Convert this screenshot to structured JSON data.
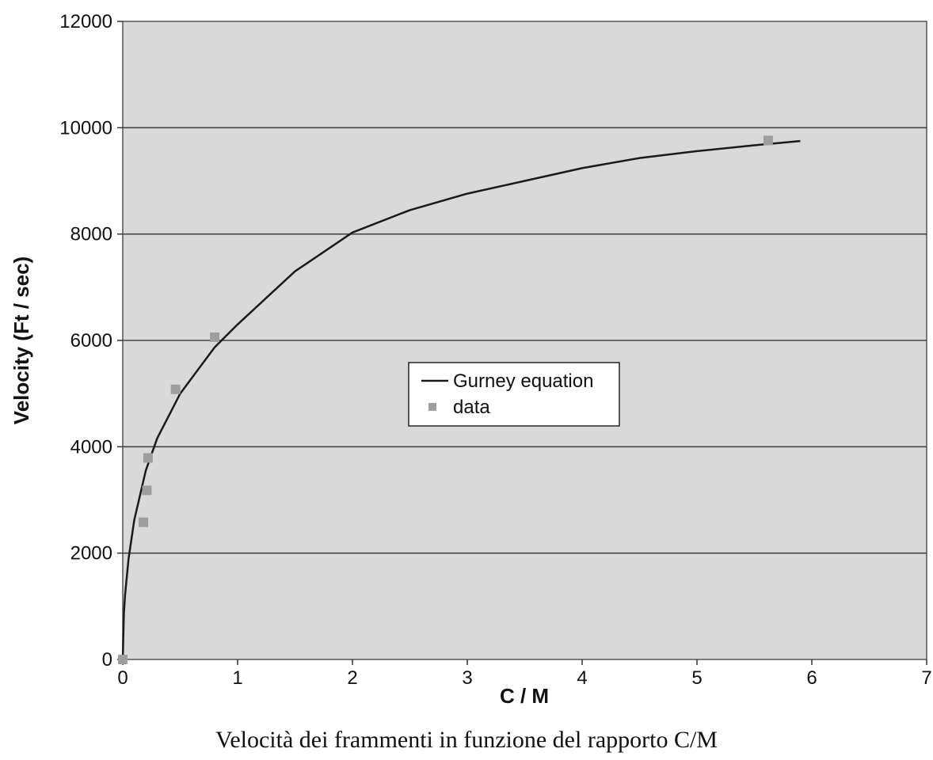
{
  "chart_data": {
    "type": "scatter",
    "xlabel": "C / M",
    "ylabel": "Velocity (Ft / sec)",
    "xlim": [
      0,
      7
    ],
    "ylim": [
      0,
      12000
    ],
    "xticks": [
      "0",
      "1",
      "2",
      "3",
      "4",
      "5",
      "6",
      "7"
    ],
    "yticks": [
      "0",
      "2000",
      "4000",
      "6000",
      "8000",
      "10000",
      "12000"
    ],
    "grid": "horizontal",
    "legend_position": "center-right",
    "plot_background": "#d9d9d9",
    "series": [
      {
        "name": "Gurney equation",
        "type": "line",
        "color": "#1a1a1a",
        "x": [
          0,
          0.01,
          0.02,
          0.05,
          0.1,
          0.2,
          0.3,
          0.5,
          0.8,
          1.0,
          1.5,
          2.0,
          2.5,
          3.0,
          3.5,
          4.0,
          4.5,
          5.0,
          5.5,
          5.9
        ],
        "y": [
          0,
          860,
          1210,
          1890,
          2620,
          3550,
          4160,
          5000,
          5870,
          6300,
          7300,
          8030,
          8450,
          8760,
          9000,
          9240,
          9430,
          9560,
          9670,
          9750
        ]
      },
      {
        "name": "data",
        "type": "scatter",
        "color": "#9e9e9e",
        "x": [
          0,
          0.18,
          0.21,
          0.22,
          0.46,
          0.8,
          5.62
        ],
        "y": [
          0,
          2580,
          3180,
          3790,
          5080,
          6060,
          9760
        ]
      }
    ]
  },
  "caption": "Velocità dei frammenti in funzione del rapporto  C/M"
}
